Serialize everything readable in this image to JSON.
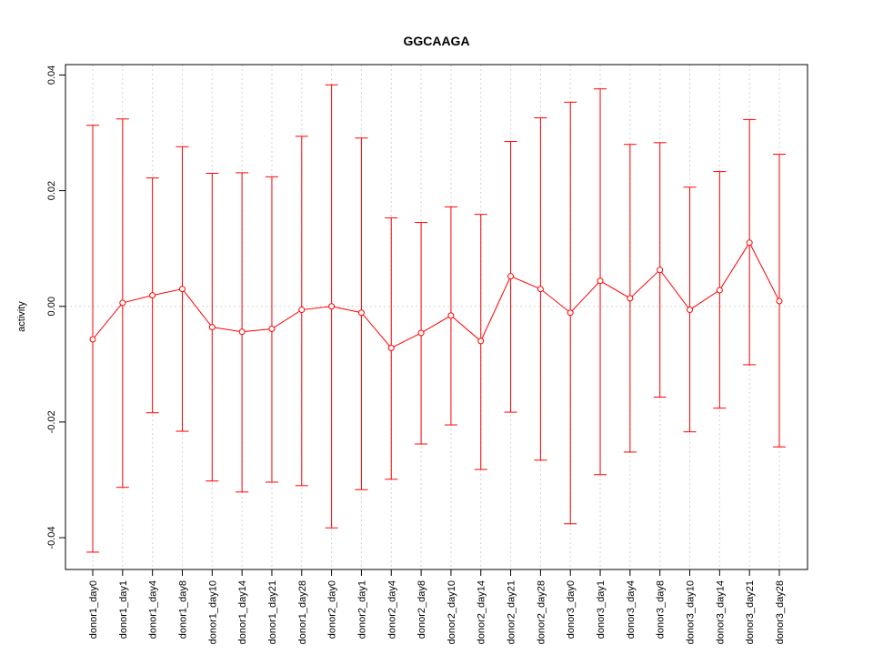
{
  "chart_data": {
    "type": "line",
    "title": "GGCAAGA",
    "xlabel": "",
    "ylabel": "activity",
    "ylim": [
      -0.0455,
      0.0418
    ],
    "yticks": [
      -0.04,
      -0.02,
      0.0,
      0.02,
      0.04
    ],
    "ytick_labels": [
      "-0.04",
      "-0.02",
      "0.00",
      "0.02",
      "0.04"
    ],
    "grid": true,
    "color": "#ff0000",
    "categories": [
      "donor1_day0",
      "donor1_day1",
      "donor1_day4",
      "donor1_day8",
      "donor1_day10",
      "donor1_day14",
      "donor1_day21",
      "donor1_day28",
      "donor2_day0",
      "donor2_day1",
      "donor2_day4",
      "donor2_day8",
      "donor2_day10",
      "donor2_day14",
      "donor2_day21",
      "donor2_day28",
      "donor3_day0",
      "donor3_day1",
      "donor3_day4",
      "donor3_day8",
      "donor3_day10",
      "donor3_day14",
      "donor3_day21",
      "donor3_day28"
    ],
    "values": [
      -0.0057,
      0.0006,
      0.0019,
      0.003,
      -0.0036,
      -0.0044,
      -0.0039,
      -0.0006,
      0.0,
      -0.0011,
      -0.0072,
      -0.0046,
      -0.0016,
      -0.006,
      0.0052,
      0.003,
      -0.0011,
      0.0044,
      0.0014,
      0.0063,
      -0.0006,
      0.0028,
      0.011,
      0.0009
    ],
    "upper": [
      0.0313,
      0.0324,
      0.0222,
      0.0276,
      0.023,
      0.0231,
      0.0224,
      0.0294,
      0.0383,
      0.0291,
      0.0153,
      0.0145,
      0.0172,
      0.0159,
      0.0285,
      0.0326,
      0.0353,
      0.0376,
      0.028,
      0.0283,
      0.0206,
      0.0233,
      0.0323,
      0.0263
    ],
    "lower": [
      -0.0425,
      -0.0313,
      -0.0184,
      -0.0216,
      -0.0302,
      -0.0321,
      -0.0304,
      -0.031,
      -0.0383,
      -0.0317,
      -0.0299,
      -0.0238,
      -0.0205,
      -0.0282,
      -0.0183,
      -0.0266,
      -0.0376,
      -0.0291,
      -0.0252,
      -0.0157,
      -0.0217,
      -0.0176,
      -0.0101,
      -0.0243
    ]
  }
}
